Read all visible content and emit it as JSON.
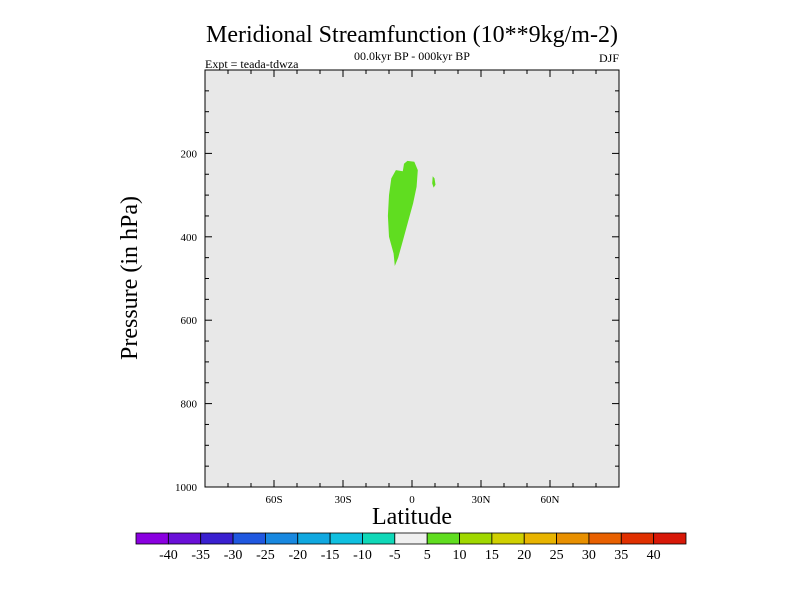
{
  "chart_data": {
    "type": "heatmap",
    "title": "Meridional Streamfunction (10**9kg/m-2)",
    "subtitle_center": "00.0kyr BP - 000kyr BP",
    "subtitle_left": "Expt = teada-tdwza",
    "subtitle_right": "DJF",
    "xlabel": "Latitude",
    "ylabel": "Pressure (in hPa)",
    "xlim": [
      -90,
      90
    ],
    "ylim": [
      0,
      1000
    ],
    "y_inverted": true,
    "x_ticks": [
      {
        "value": -60,
        "label": "60S"
      },
      {
        "value": -30,
        "label": "30S"
      },
      {
        "value": 0,
        "label": "0"
      },
      {
        "value": 30,
        "label": "30N"
      },
      {
        "value": 60,
        "label": "60N"
      }
    ],
    "y_ticks": [
      {
        "value": 200,
        "label": "200"
      },
      {
        "value": 400,
        "label": "400"
      },
      {
        "value": 600,
        "label": "600"
      },
      {
        "value": 800,
        "label": "800"
      },
      {
        "value": 1000,
        "label": "1000"
      }
    ],
    "background_fill": "#e8e8e8",
    "regions": [
      {
        "name": "main-positive-cell",
        "level_range": [
          5,
          10
        ],
        "color": "#60dd20",
        "outline": [
          [
            -2.0,
            218
          ],
          [
            1.0,
            220
          ],
          [
            2.5,
            240
          ],
          [
            2.0,
            280
          ],
          [
            0.5,
            320
          ],
          [
            -1.5,
            360
          ],
          [
            -4.0,
            410
          ],
          [
            -6.0,
            450
          ],
          [
            -7.5,
            470
          ],
          [
            -8.0,
            440
          ],
          [
            -10.0,
            400
          ],
          [
            -10.5,
            350
          ],
          [
            -10.0,
            300
          ],
          [
            -9.0,
            260
          ],
          [
            -7.0,
            240
          ],
          [
            -4.0,
            243
          ],
          [
            -3.5,
            225
          ]
        ]
      },
      {
        "name": "small-positive-cell",
        "level_range": [
          5,
          10
        ],
        "color": "#60dd20",
        "outline": [
          [
            9.0,
            255
          ],
          [
            9.8,
            260
          ],
          [
            10.2,
            275
          ],
          [
            9.4,
            282
          ],
          [
            8.8,
            272
          ]
        ]
      }
    ],
    "colorbar": {
      "labels": [
        "-40",
        "-35",
        "-30",
        "-25",
        "-20",
        "-15",
        "-10",
        "-5",
        "5",
        "10",
        "15",
        "20",
        "25",
        "30",
        "35",
        "40"
      ],
      "colors": [
        "#8a00e0",
        "#6a10d8",
        "#3a20d0",
        "#2058e0",
        "#1888e0",
        "#10a8e0",
        "#10c0e0",
        "#10d8b8",
        "#f0f0f0",
        "#60dd20",
        "#a0d800",
        "#d0d000",
        "#e8b400",
        "#e89000",
        "#e86000",
        "#e03000",
        "#d81808"
      ]
    }
  }
}
